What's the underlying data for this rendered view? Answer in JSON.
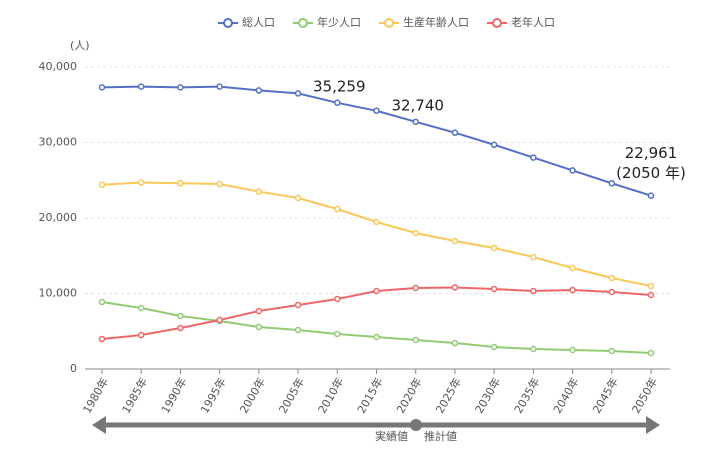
{
  "chart_data": {
    "type": "line",
    "y_label": "(人)",
    "categories": [
      "1980年",
      "1985年",
      "1990年",
      "1995年",
      "2000年",
      "2005年",
      "2010年",
      "2015年",
      "2020年",
      "2025年",
      "2030年",
      "2035年",
      "2040年",
      "2045年",
      "2050年"
    ],
    "series": [
      {
        "name": "総人口",
        "color": "#5470c6",
        "values": [
          37300,
          37400,
          37300,
          37400,
          36900,
          36500,
          35259,
          34200,
          32740,
          31300,
          29700,
          28000,
          26300,
          24600,
          22961
        ],
        "value_labels": [
          null,
          null,
          null,
          null,
          null,
          null,
          "35,259",
          null,
          "32,740",
          null,
          null,
          null,
          null,
          null,
          "22,961"
        ]
      },
      {
        "name": "年少人口",
        "color": "#91cc75",
        "values": [
          8870,
          8080,
          7020,
          6360,
          5560,
          5170,
          4640,
          4240,
          3840,
          3440,
          2910,
          2650,
          2520,
          2380,
          2120
        ]
      },
      {
        "name": "生産年齢人口",
        "color": "#fac858",
        "values": [
          24400,
          24700,
          24600,
          24500,
          23500,
          22650,
          21190,
          19470,
          18010,
          16950,
          16030,
          14830,
          13380,
          12050,
          10990
        ]
      },
      {
        "name": "老年人口",
        "color": "#ee6666",
        "values": [
          3970,
          4500,
          5430,
          6490,
          7680,
          8480,
          9270,
          10330,
          10730,
          10800,
          10600,
          10330,
          10460,
          10200,
          9800
        ]
      }
    ],
    "annotation": "(2050 年)",
    "period_labels": [
      "実績値",
      "推計値"
    ],
    "ylim": [
      0,
      40000
    ],
    "yticks": [
      0,
      {
        "value": 10000,
        "label": "10,000"
      },
      {
        "value": 20000,
        "label": "20,000"
      },
      {
        "value": 30000,
        "label": "30,000"
      },
      {
        "value": 40000,
        "label": "40,000"
      }
    ],
    "grid": true
  }
}
